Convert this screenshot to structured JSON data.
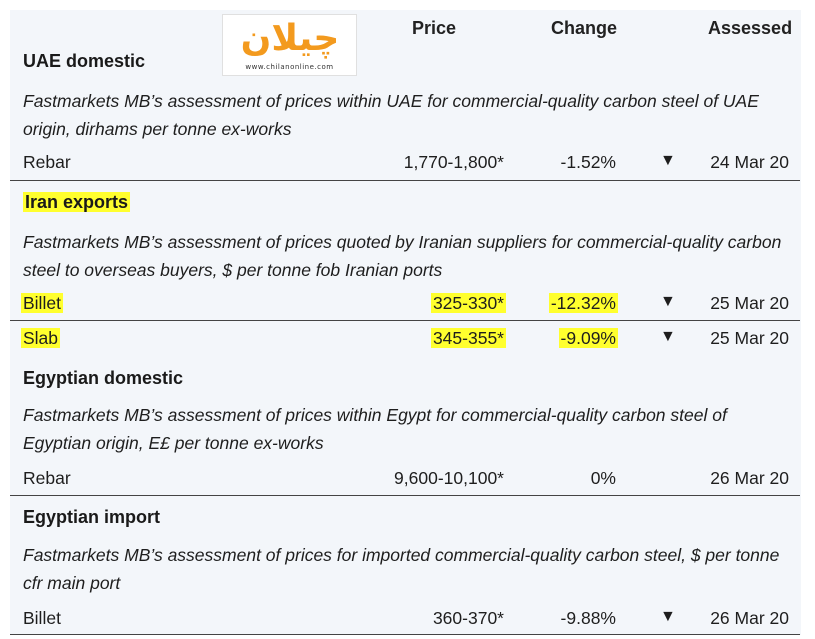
{
  "header": {
    "price": "Price",
    "change": "Change",
    "assessed": "Assessed"
  },
  "logo": {
    "word": "چیلان",
    "url": "www.chilanonline.com"
  },
  "sections": [
    {
      "title": "UAE domestic",
      "description": "Fastmarkets MB’s assessment of prices within UAE for commercial-quality carbon steel of UAE origin, dirhams per tonne ex-works",
      "rows": [
        {
          "item": "Rebar",
          "price": "1,770-1,800*",
          "change": "-1.52%",
          "arrow": "▼",
          "assessed": "24 Mar 20"
        }
      ]
    },
    {
      "title": "Iran exports",
      "description": "Fastmarkets MB’s assessment of prices quoted by Iranian suppliers for commercial-quality carbon steel to overseas buyers, $ per tonne fob Iranian ports",
      "rows": [
        {
          "item": "Billet",
          "price": "325-330*",
          "change": "-12.32%",
          "arrow": "▼",
          "assessed": "25 Mar 20"
        },
        {
          "item": "Slab",
          "price": "345-355*",
          "change": "-9.09%",
          "arrow": "▼",
          "assessed": "25 Mar 20"
        }
      ]
    },
    {
      "title": "Egyptian domestic",
      "description": "Fastmarkets MB’s assessment of prices within Egypt for commercial-quality carbon steel of Egyptian origin, E£ per tonne ex-works",
      "rows": [
        {
          "item": "Rebar",
          "price": "9,600-10,100*",
          "change": "0%",
          "arrow": "",
          "assessed": "26 Mar 20"
        }
      ]
    },
    {
      "title": "Egyptian import",
      "description": "Fastmarkets MB’s assessment of prices for imported commercial-quality carbon steel, $ per tonne cfr main port",
      "rows": [
        {
          "item": "Billet",
          "price": "360-370*",
          "change": "-9.88%",
          "arrow": "▼",
          "assessed": "26 Mar 20"
        }
      ]
    }
  ]
}
